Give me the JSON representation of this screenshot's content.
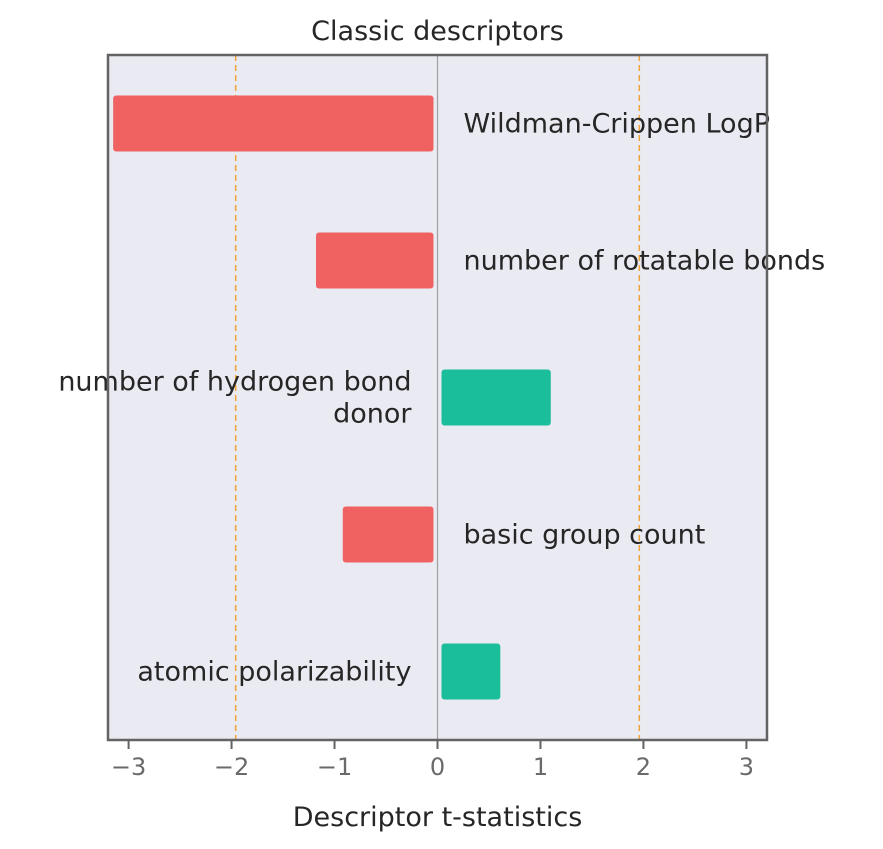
{
  "chart_data": {
    "type": "bar",
    "orientation": "horizontal",
    "title": "Classic descriptors",
    "xlabel": "Descriptor t-statistics",
    "ylabel": "",
    "xlim": [
      -3.2,
      3.2
    ],
    "xticks": [
      -3,
      -2,
      -1,
      0,
      1,
      2,
      3
    ],
    "xtick_labels": [
      "−3",
      "−2",
      "−1",
      "0",
      "1",
      "2",
      "3"
    ],
    "threshold_lines": [
      -1.96,
      1.96
    ],
    "grid": false,
    "categories": [
      [
        "Wildman-Crippen LogP"
      ],
      [
        "number of rotatable bonds"
      ],
      [
        "number of hydrogen bond",
        "donor"
      ],
      [
        "basic group count"
      ],
      [
        "atomic polarizability"
      ]
    ],
    "values": [
      -3.15,
      -1.18,
      1.1,
      -0.92,
      0.61
    ]
  },
  "colors": {
    "negative": "#f06262",
    "positive": "#1bbe9a",
    "threshold": "#f2a33a",
    "plot_background": "#eaeaf2",
    "frame": "#636363",
    "zero_line": "#a0a0a0"
  }
}
